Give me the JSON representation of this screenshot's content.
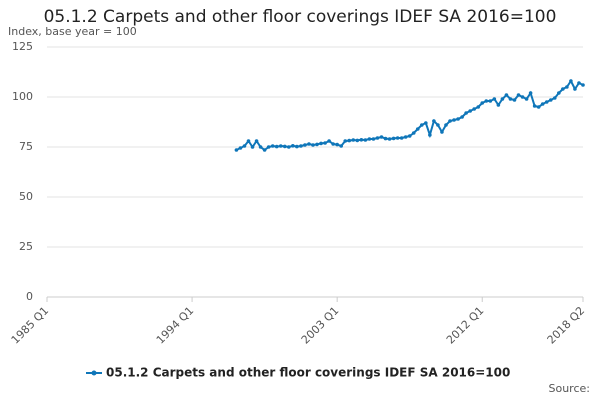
{
  "chart_data": {
    "type": "line",
    "title": "05.1.2 Carpets and other floor coverings IDEF SA 2016=100",
    "subtitle": "Index, base year = 100",
    "source": "Source:",
    "categories": [
      "1985 Q1",
      null,
      null,
      null,
      null,
      null,
      null,
      null,
      null,
      null,
      null,
      null,
      null,
      null,
      null,
      null,
      null,
      null,
      null,
      null,
      null,
      null,
      null,
      null,
      null,
      null,
      null,
      null,
      null,
      null,
      null,
      null,
      null,
      null,
      null,
      null,
      "1994 Q1",
      null,
      null,
      null,
      null,
      null,
      null,
      null,
      null,
      null,
      null,
      null,
      null,
      null,
      null,
      null,
      null,
      null,
      null,
      null,
      null,
      null,
      null,
      null,
      null,
      null,
      null,
      null,
      null,
      null,
      null,
      null,
      null,
      null,
      null,
      null,
      "2003 Q1",
      null,
      null,
      null,
      null,
      null,
      null,
      null,
      null,
      null,
      null,
      null,
      null,
      null,
      null,
      null,
      null,
      null,
      null,
      null,
      null,
      null,
      null,
      null,
      null,
      null,
      null,
      null,
      null,
      null,
      null,
      null,
      null,
      null,
      null,
      null,
      "2012 Q1",
      null,
      null,
      null,
      null,
      null,
      null,
      null,
      null,
      null,
      null,
      null,
      null,
      null,
      null,
      null,
      null,
      null,
      null,
      null,
      null,
      null,
      null,
      null,
      null,
      "2018 Q2"
    ],
    "series": [
      {
        "name": "05.1.2 Carpets and other floor coverings IDEF SA 2016=100",
        "color": "#0f76b9",
        "values": [
          null,
          null,
          null,
          null,
          null,
          null,
          null,
          null,
          null,
          null,
          null,
          null,
          null,
          null,
          null,
          null,
          null,
          null,
          null,
          null,
          null,
          null,
          null,
          null,
          null,
          null,
          null,
          null,
          null,
          null,
          null,
          null,
          null,
          null,
          null,
          null,
          null,
          null,
          null,
          null,
          null,
          null,
          null,
          null,
          null,
          null,
          null,
          73.5,
          74.5,
          75.5,
          78,
          75,
          78,
          75,
          73.5,
          75,
          75.5,
          75.2,
          75.5,
          75.3,
          75,
          75.6,
          75.2,
          75.5,
          76,
          76.5,
          76,
          76.3,
          76.8,
          77,
          78,
          76.5,
          76.2,
          75.5,
          78,
          78.2,
          78.5,
          78.3,
          78.6,
          78.5,
          79,
          79,
          79.5,
          80,
          79.2,
          79,
          79.3,
          79.5,
          79.5,
          80,
          80.5,
          82,
          84,
          86,
          87,
          81,
          88,
          86,
          82.5,
          86,
          88,
          88.5,
          89,
          90,
          92,
          93,
          94,
          95,
          97,
          98,
          98,
          99,
          96,
          99,
          101,
          99,
          98.5,
          101,
          100,
          99,
          102,
          95.5,
          95,
          96.5,
          97.5,
          98.5,
          99.5,
          102,
          104,
          105,
          108,
          104,
          107,
          106
        ]
      }
    ],
    "ylim": [
      0,
      125
    ],
    "yticks": [
      0,
      25,
      50,
      75,
      100,
      125
    ],
    "grid": true,
    "legend": "bottom"
  }
}
